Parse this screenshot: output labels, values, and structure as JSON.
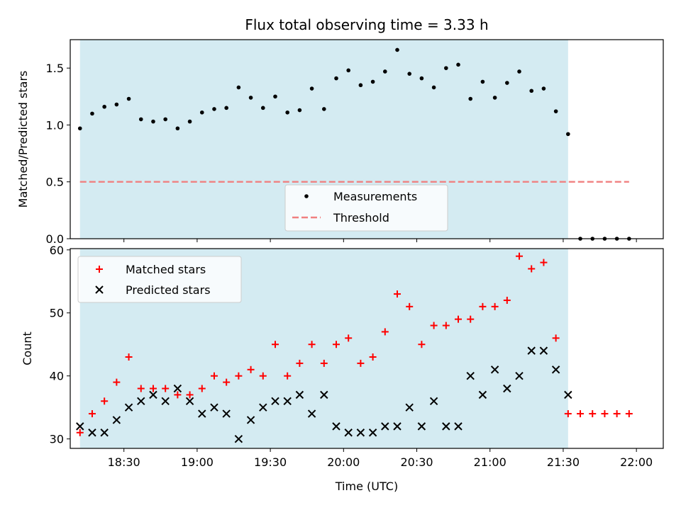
{
  "chart_data": [
    {
      "type": "scatter",
      "title": "Flux total observing time = 3.33 h",
      "ylabel": "Matched/Predicted stars",
      "xlabel": "",
      "ylim": [
        0,
        1.75
      ],
      "xlim": [
        "18:08",
        "22:11"
      ],
      "yticks": [
        0.0,
        0.5,
        1.0,
        1.5
      ],
      "ytick_labels": [
        "0.0",
        "0.5",
        "1.0",
        "1.5"
      ],
      "grid": false,
      "legend_position": "lower-center",
      "shaded_region": {
        "start": "18:12",
        "end": "21:32",
        "color": "#d4ebf2"
      },
      "threshold": {
        "name": "Threshold",
        "value": 0.5,
        "start": "18:12",
        "end": "21:57",
        "color": "#f08080"
      },
      "series": [
        {
          "name": "Measurements",
          "color": "#000000",
          "x": [
            "18:12",
            "18:17",
            "18:22",
            "18:27",
            "18:32",
            "18:37",
            "18:42",
            "18:47",
            "18:52",
            "18:57",
            "19:02",
            "19:07",
            "19:12",
            "19:17",
            "19:22",
            "19:27",
            "19:32",
            "19:37",
            "19:42",
            "19:47",
            "19:52",
            "19:57",
            "20:02",
            "20:07",
            "20:12",
            "20:17",
            "20:22",
            "20:27",
            "20:32",
            "20:37",
            "20:42",
            "20:47",
            "20:52",
            "20:57",
            "21:02",
            "21:07",
            "21:12",
            "21:17",
            "21:22",
            "21:27",
            "21:32",
            "21:37",
            "21:42",
            "21:47",
            "21:52",
            "21:57"
          ],
          "y": [
            0.97,
            1.1,
            1.16,
            1.18,
            1.23,
            1.05,
            1.03,
            1.05,
            0.97,
            1.03,
            1.11,
            1.14,
            1.15,
            1.33,
            1.24,
            1.15,
            1.25,
            1.11,
            1.13,
            1.32,
            1.14,
            1.41,
            1.48,
            1.35,
            1.38,
            1.47,
            1.66,
            1.45,
            1.41,
            1.33,
            1.5,
            1.53,
            1.23,
            1.38,
            1.24,
            1.37,
            1.47,
            1.3,
            1.32,
            1.12,
            0.92,
            0.0,
            0.0,
            0.0,
            0.0,
            0.0
          ]
        }
      ]
    },
    {
      "type": "scatter",
      "title": "",
      "ylabel": "Count",
      "xlabel": "Time (UTC)",
      "ylim": [
        28.5,
        60.2
      ],
      "xlim": [
        "18:08",
        "22:11"
      ],
      "yticks": [
        30,
        40,
        50,
        60
      ],
      "ytick_labels": [
        "30",
        "40",
        "50",
        "60"
      ],
      "xticks": [
        "18:30",
        "19:00",
        "19:30",
        "20:00",
        "20:30",
        "21:00",
        "21:30",
        "22:00"
      ],
      "xtick_labels": [
        "18:30",
        "19:00",
        "19:30",
        "20:00",
        "20:30",
        "21:00",
        "21:30",
        "22:00"
      ],
      "grid": false,
      "legend_position": "top-left",
      "shaded_region": {
        "start": "18:12",
        "end": "21:32",
        "color": "#d4ebf2"
      },
      "series": [
        {
          "name": "Matched stars",
          "marker": "plus",
          "color": "#ff0000",
          "x": [
            "18:12",
            "18:17",
            "18:22",
            "18:27",
            "18:32",
            "18:37",
            "18:42",
            "18:47",
            "18:52",
            "18:57",
            "19:02",
            "19:07",
            "19:12",
            "19:17",
            "19:22",
            "19:27",
            "19:32",
            "19:37",
            "19:42",
            "19:47",
            "19:52",
            "19:57",
            "20:02",
            "20:07",
            "20:12",
            "20:17",
            "20:22",
            "20:27",
            "20:32",
            "20:37",
            "20:42",
            "20:47",
            "20:52",
            "20:57",
            "21:02",
            "21:07",
            "21:12",
            "21:17",
            "21:22",
            "21:27",
            "21:32",
            "21:37",
            "21:42",
            "21:47",
            "21:52",
            "21:57"
          ],
          "y": [
            31,
            34,
            36,
            39,
            43,
            38,
            38,
            38,
            37,
            37,
            38,
            40,
            39,
            40,
            41,
            40,
            45,
            40,
            42,
            45,
            42,
            45,
            46,
            42,
            43,
            47,
            53,
            51,
            45,
            48,
            48,
            49,
            49,
            51,
            51,
            52,
            59,
            57,
            58,
            46,
            34,
            34,
            34,
            34,
            34,
            34
          ]
        },
        {
          "name": "Predicted stars",
          "marker": "x",
          "color": "#000000",
          "x": [
            "18:12",
            "18:17",
            "18:22",
            "18:27",
            "18:32",
            "18:37",
            "18:42",
            "18:47",
            "18:52",
            "18:57",
            "19:02",
            "19:07",
            "19:12",
            "19:17",
            "19:22",
            "19:27",
            "19:32",
            "19:37",
            "19:42",
            "19:47",
            "19:52",
            "19:57",
            "20:02",
            "20:07",
            "20:12",
            "20:17",
            "20:22",
            "20:27",
            "20:32",
            "20:37",
            "20:42",
            "20:47",
            "20:52",
            "20:57",
            "21:02",
            "21:07",
            "21:12",
            "21:17",
            "21:22",
            "21:27",
            "21:32"
          ],
          "y": [
            32,
            31,
            31,
            33,
            35,
            36,
            37,
            36,
            38,
            36,
            34,
            35,
            34,
            30,
            33,
            35,
            36,
            36,
            37,
            34,
            37,
            32,
            31,
            31,
            31,
            32,
            32,
            35,
            32,
            36,
            32,
            32,
            40,
            37,
            41,
            38,
            40,
            44,
            44,
            41,
            37
          ]
        }
      ]
    }
  ]
}
